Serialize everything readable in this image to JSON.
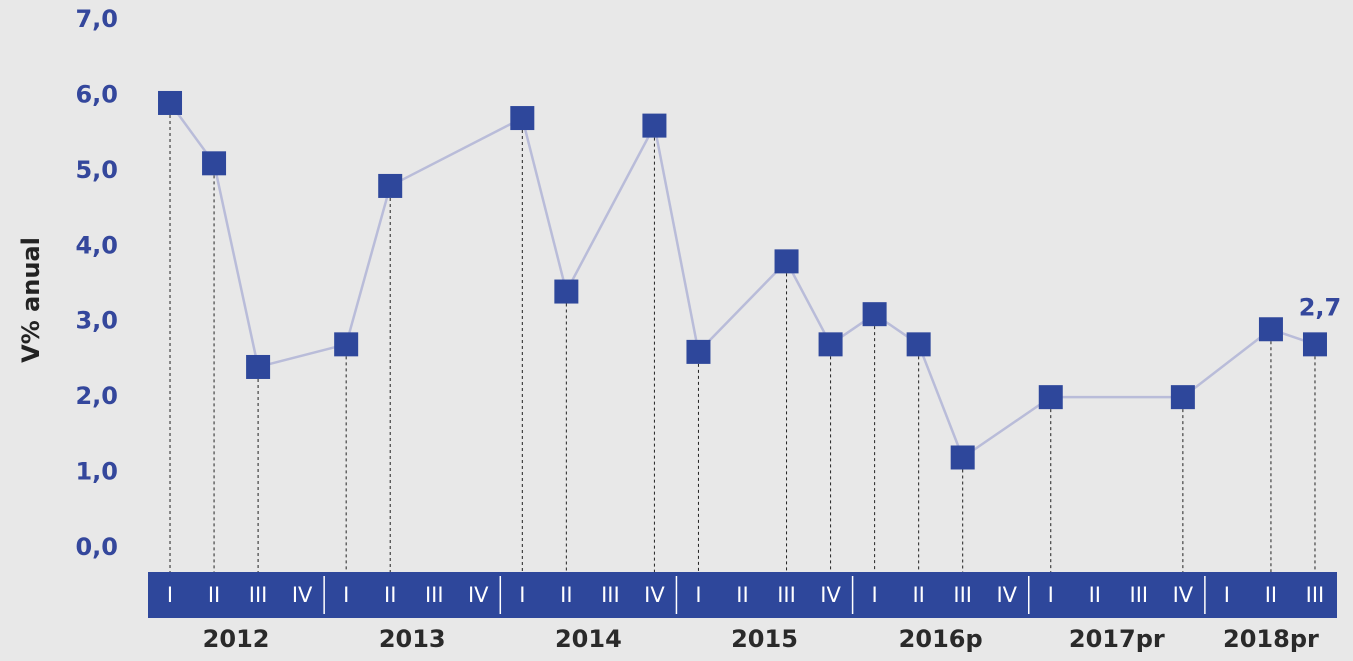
{
  "chart_data": {
    "type": "line",
    "y_label": "V% anual",
    "categories": [
      "I",
      "II",
      "III",
      "IV",
      "I",
      "II",
      "III",
      "IV",
      "I",
      "II",
      "III",
      "IV",
      "I",
      "II",
      "III",
      "IV",
      "I",
      "II",
      "III",
      "IV",
      "I",
      "II",
      "III",
      "IV",
      "I",
      "II",
      "III"
    ],
    "years": [
      "2012",
      "2013",
      "2014",
      "2015",
      "2016p",
      "2017pr",
      "2018pr"
    ],
    "series": [
      {
        "name": "V% anual",
        "color": "#2e479b",
        "line_color": "#b9bcd9",
        "values": [
          5.9,
          5.1,
          2.4,
          null,
          2.7,
          4.8,
          null,
          null,
          5.7,
          3.4,
          null,
          5.6,
          2.6,
          null,
          3.8,
          2.7,
          3.1,
          2.7,
          1.2,
          null,
          2.0,
          null,
          null,
          2.0,
          null,
          2.9,
          2.7
        ],
        "value_labels": [
          null,
          null,
          null,
          null,
          null,
          null,
          null,
          null,
          null,
          null,
          null,
          null,
          null,
          null,
          null,
          null,
          null,
          null,
          null,
          null,
          null,
          null,
          null,
          null,
          null,
          null,
          "2,7"
        ]
      }
    ],
    "ylim": [
      0,
      7
    ],
    "yticks": [
      {
        "value": 0,
        "label": "0,0"
      },
      {
        "value": 1,
        "label": "1,0"
      },
      {
        "value": 2,
        "label": "2,0"
      },
      {
        "value": 3,
        "label": "3,0"
      },
      {
        "value": 4,
        "label": "4,0"
      },
      {
        "value": 5,
        "label": "5,0"
      },
      {
        "value": 6,
        "label": "6,0"
      },
      {
        "value": 7,
        "label": "7,0"
      }
    ],
    "band_color": "#2e479b"
  }
}
